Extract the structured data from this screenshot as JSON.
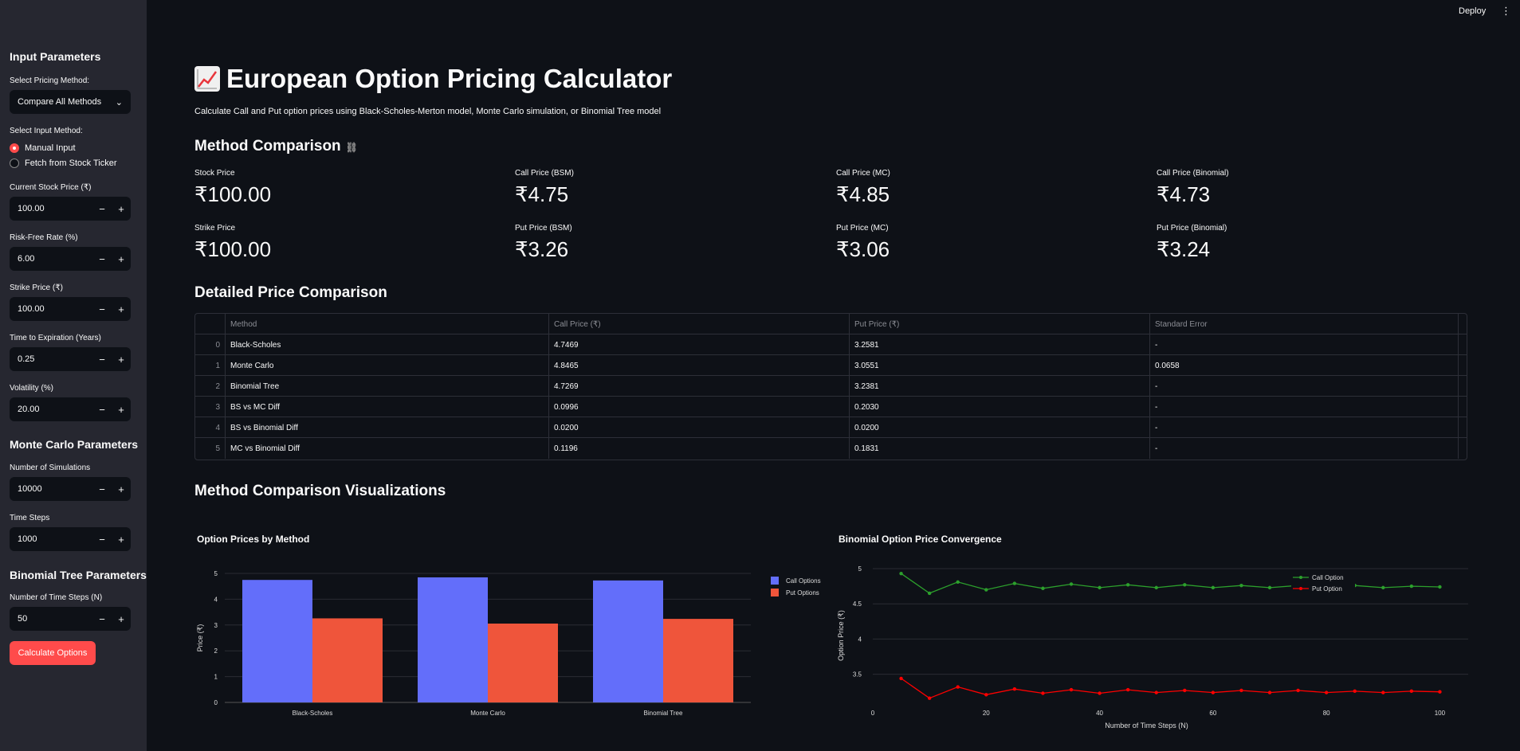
{
  "header": {
    "deploy_label": "Deploy",
    "menu_icon": "kebab-icon"
  },
  "sidebar": {
    "heading": "Input Parameters",
    "pricing_method_label": "Select Pricing Method:",
    "pricing_method_value": "Compare All Methods",
    "input_method_label": "Select Input Method:",
    "input_methods": [
      "Manual Input",
      "Fetch from Stock Ticker"
    ],
    "fields": [
      {
        "label": "Current Stock Price (₹)",
        "value": "100.00"
      },
      {
        "label": "Risk-Free Rate (%)",
        "value": "6.00"
      },
      {
        "label": "Strike Price (₹)",
        "value": "100.00"
      },
      {
        "label": "Time to Expiration (Years)",
        "value": "0.25"
      },
      {
        "label": "Volatility (%)",
        "value": "20.00"
      }
    ],
    "mc_heading": "Monte Carlo Parameters",
    "mc_fields": [
      {
        "label": "Number of Simulations",
        "value": "10000"
      },
      {
        "label": "Time Steps",
        "value": "1000"
      }
    ],
    "bt_heading": "Binomial Tree Parameters",
    "bt_fields": [
      {
        "label": "Number of Time Steps (N)",
        "value": "50"
      }
    ],
    "minus": "−",
    "plus": "+",
    "calculate_label": "Calculate Options"
  },
  "main": {
    "title": "European Option Pricing Calculator",
    "subtitle": "Calculate Call and Put option prices using Black-Scholes-Merton model, Monte Carlo simulation, or Binomial Tree model",
    "comparison_heading": "Method Comparison",
    "metrics": [
      {
        "label": "Stock Price",
        "value": "₹100.00"
      },
      {
        "label": "Call Price (BSM)",
        "value": "₹4.75"
      },
      {
        "label": "Call Price (MC)",
        "value": "₹4.85"
      },
      {
        "label": "Call Price (Binomial)",
        "value": "₹4.73"
      },
      {
        "label": "Strike Price",
        "value": "₹100.00"
      },
      {
        "label": "Put Price (BSM)",
        "value": "₹3.26"
      },
      {
        "label": "Put Price (MC)",
        "value": "₹3.06"
      },
      {
        "label": "Put Price (Binomial)",
        "value": "₹3.24"
      }
    ],
    "detailed_heading": "Detailed Price Comparison",
    "table": {
      "columns": [
        "Method",
        "Call Price (₹)",
        "Put Price (₹)",
        "Standard Error"
      ],
      "rows": [
        [
          "0",
          "Black-Scholes",
          "4.7469",
          "3.2581",
          "-"
        ],
        [
          "1",
          "Monte Carlo",
          "4.8465",
          "3.0551",
          "0.0658"
        ],
        [
          "2",
          "Binomial Tree",
          "4.7269",
          "3.2381",
          "-"
        ],
        [
          "3",
          "BS vs MC Diff",
          "0.0996",
          "0.2030",
          "-"
        ],
        [
          "4",
          "BS vs Binomial Diff",
          "0.0200",
          "0.0200",
          "-"
        ],
        [
          "5",
          "MC vs Binomial Diff",
          "0.1196",
          "0.1831",
          "-"
        ]
      ]
    },
    "viz_heading": "Method Comparison Visualizations"
  },
  "colors": {
    "call_bar": "#636efa",
    "put_bar": "#ef553b",
    "call_line": "#2ca02c",
    "put_line": "#ff0000",
    "accent": "#ff4b4b"
  },
  "chart_data": [
    {
      "type": "bar",
      "title": "Option Prices by Method",
      "categories": [
        "Black-Scholes",
        "Monte Carlo",
        "Binomial Tree"
      ],
      "series": [
        {
          "name": "Call Options",
          "values": [
            4.7469,
            4.8465,
            4.7269
          ]
        },
        {
          "name": "Put Options",
          "values": [
            3.2581,
            3.0551,
            3.2381
          ]
        }
      ],
      "xlabel": "",
      "ylabel": "Price (₹)",
      "ylim": [
        0,
        5
      ],
      "yticks": [
        "0",
        "1",
        "2",
        "3",
        "4",
        "5"
      ],
      "legend": "top-right",
      "grid": true
    },
    {
      "type": "line",
      "title": "Binomial Option Price Convergence",
      "x": [
        5,
        10,
        15,
        20,
        25,
        30,
        35,
        40,
        45,
        50,
        55,
        60,
        65,
        70,
        75,
        80,
        85,
        90,
        95,
        100
      ],
      "series": [
        {
          "name": "Call Option",
          "values": [
            4.93,
            4.65,
            4.81,
            4.7,
            4.79,
            4.72,
            4.78,
            4.73,
            4.77,
            4.73,
            4.77,
            4.73,
            4.76,
            4.73,
            4.76,
            4.73,
            4.76,
            4.73,
            4.75,
            4.74
          ]
        },
        {
          "name": "Put Option",
          "values": [
            3.44,
            3.16,
            3.32,
            3.21,
            3.29,
            3.23,
            3.28,
            3.23,
            3.28,
            3.24,
            3.27,
            3.24,
            3.27,
            3.24,
            3.27,
            3.24,
            3.26,
            3.24,
            3.26,
            3.25
          ]
        }
      ],
      "xlabel": "Number of Time Steps (N)",
      "ylabel": "Option Price (₹)",
      "xlim": [
        0,
        105
      ],
      "ylim": [
        3.1,
        5.0
      ],
      "xticks": [
        0,
        20,
        40,
        60,
        80,
        100
      ],
      "yticks": [
        3.5,
        4,
        4.5,
        5
      ],
      "ytick_labels": [
        "3.5",
        "4",
        "4.5",
        "5"
      ],
      "legend": "top-right",
      "grid": true
    }
  ]
}
